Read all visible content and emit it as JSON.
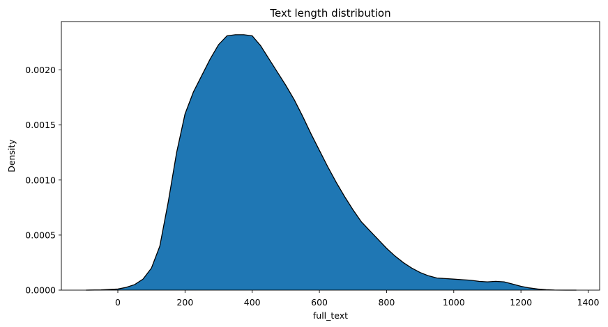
{
  "chart_data": {
    "type": "area",
    "title": "Text length distribution",
    "xlabel": "full_text",
    "ylabel": "Density",
    "xlim": [
      -150,
      1400
    ],
    "ylim": [
      0,
      0.0024
    ],
    "xticks": [
      0,
      200,
      400,
      600,
      800,
      1000,
      1200,
      1400
    ],
    "yticks": [
      0,
      0.0005,
      0.001,
      0.0015,
      0.002
    ],
    "ytick_labels": [
      "0.0000",
      "0.0005",
      "0.0010",
      "0.0015",
      "0.0020"
    ],
    "grid": false,
    "fill_color": "#1f77b4",
    "edge_color": "#000000",
    "series": [
      {
        "x": [
          -95,
          -50,
          0,
          25,
          50,
          75,
          100,
          125,
          150,
          175,
          200,
          225,
          250,
          275,
          300,
          325,
          350,
          375,
          400,
          425,
          450,
          475,
          500,
          525,
          550,
          575,
          600,
          625,
          650,
          675,
          700,
          725,
          750,
          775,
          800,
          825,
          850,
          875,
          900,
          925,
          950,
          975,
          1000,
          1025,
          1050,
          1075,
          1100,
          1125,
          1150,
          1175,
          1200,
          1225,
          1250,
          1275,
          1300,
          1335,
          1365
        ],
        "y": [
          0.0,
          2e-06,
          1e-05,
          2.5e-05,
          5e-05,
          0.0001,
          0.0002,
          0.0004,
          0.0008,
          0.00125,
          0.0016,
          0.0018,
          0.00195,
          0.0021,
          0.00223,
          0.00231,
          0.00232,
          0.00232,
          0.00231,
          0.00222,
          0.0021,
          0.00198,
          0.00186,
          0.00173,
          0.00158,
          0.00142,
          0.00127,
          0.00112,
          0.00098,
          0.00085,
          0.00073,
          0.00062,
          0.00054,
          0.00046,
          0.00038,
          0.00031,
          0.00025,
          0.0002,
          0.00016,
          0.00013,
          0.00011,
          0.000105,
          0.0001,
          9.5e-05,
          9e-05,
          8e-05,
          7.5e-05,
          8e-05,
          7.5e-05,
          5.5e-05,
          3.5e-05,
          2e-05,
          1e-05,
          4e-06,
          1e-06,
          0.0,
          0.0
        ]
      }
    ]
  }
}
